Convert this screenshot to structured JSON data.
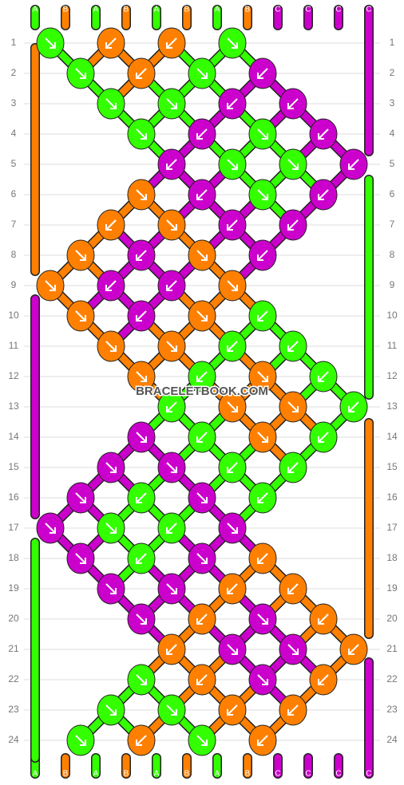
{
  "strands_top": [
    "A",
    "B",
    "A",
    "B",
    "A",
    "B",
    "A",
    "B",
    "C",
    "C",
    "C",
    "C"
  ],
  "strands_bottom": [
    "A",
    "B",
    "A",
    "B",
    "A",
    "B",
    "A",
    "B",
    "C",
    "C",
    "C",
    "C"
  ],
  "rows": [
    1,
    2,
    3,
    4,
    5,
    6,
    7,
    8,
    9,
    10,
    11,
    12,
    13,
    14,
    15,
    16,
    17,
    18,
    19,
    20,
    21,
    22,
    23,
    24
  ],
  "watermark": "BRACELETBOOK.COM"
}
